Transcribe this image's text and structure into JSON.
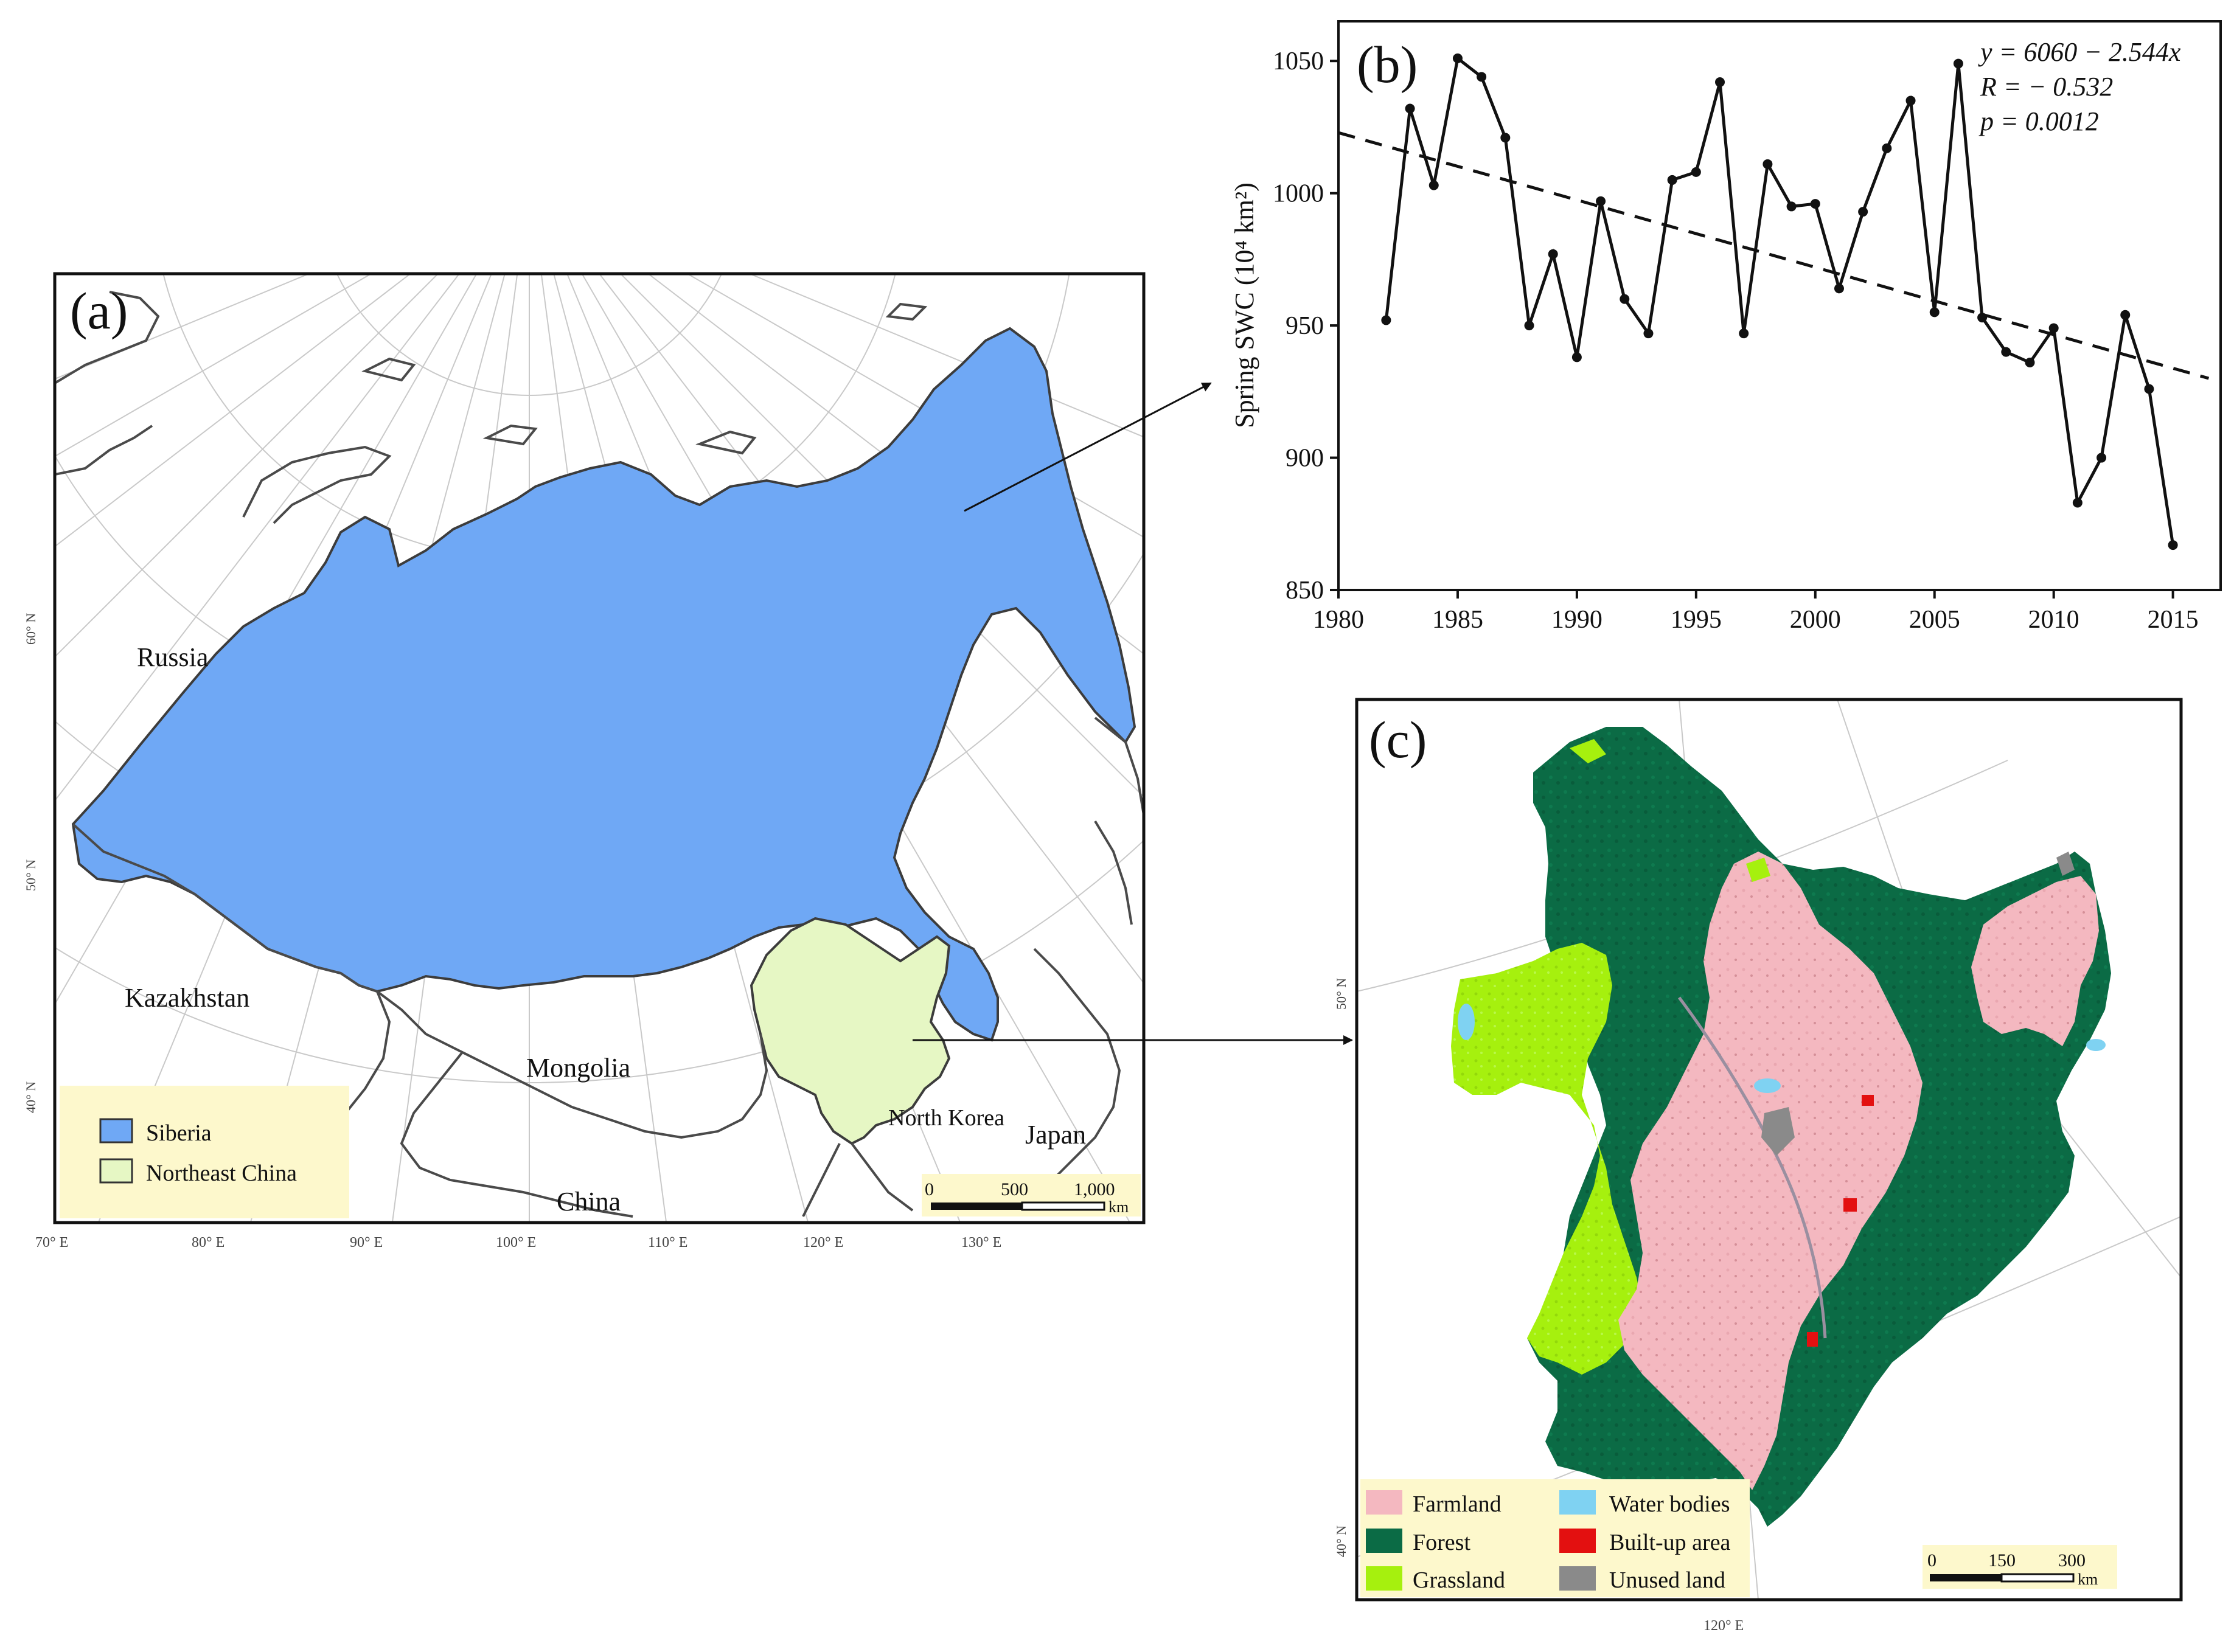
{
  "panel_a": {
    "label": "(a)",
    "countries": {
      "russia": "Russia",
      "kazakhstan": "Kazakhstan",
      "mongolia": "Mongolia",
      "china": "China",
      "north_korea": "North Korea",
      "japan": "Japan"
    },
    "legend": [
      {
        "label": "Siberia",
        "color": "#6fa8f5"
      },
      {
        "label": "Northeast China",
        "color": "#e6f7c4"
      }
    ],
    "lat_labels": [
      "60° N",
      "50° N",
      "40° N"
    ],
    "lon_labels": [
      "70° E",
      "80° E",
      "90° E",
      "100° E",
      "110° E",
      "120° E",
      "130° E"
    ],
    "scalebar": {
      "ticks": [
        "0",
        "500",
        "1,000"
      ],
      "unit": "km"
    }
  },
  "panel_c": {
    "label": "(c)",
    "legend": [
      {
        "label": "Farmland",
        "color": "#f4b8c0"
      },
      {
        "label": "Water bodies",
        "color": "#7fd2f2"
      },
      {
        "label": "Forest",
        "color": "#0b6b45"
      },
      {
        "label": "Built-up area",
        "color": "#e31010"
      },
      {
        "label": "Grassland",
        "color": "#a6f00e"
      },
      {
        "label": "Unused land",
        "color": "#8a8a8a"
      }
    ],
    "lat_labels": [
      "50° N",
      "40° N"
    ],
    "lon_labels": [
      "120° E"
    ],
    "scalebar": {
      "ticks": [
        "0",
        "150",
        "300"
      ],
      "unit": "km"
    }
  },
  "chart_data": {
    "type": "line",
    "panel_label": "(b)",
    "ylabel": "Spring SWC (10⁴ km²)",
    "xlabel": "",
    "xlim": [
      1980,
      2017
    ],
    "ylim": [
      850,
      1065
    ],
    "xticks": [
      1980,
      1985,
      1990,
      1995,
      2000,
      2005,
      2010,
      2015
    ],
    "yticks": [
      850,
      900,
      950,
      1000,
      1050
    ],
    "x": [
      1982,
      1983,
      1984,
      1985,
      1986,
      1987,
      1988,
      1989,
      1990,
      1991,
      1992,
      1993,
      1994,
      1995,
      1996,
      1997,
      1998,
      1999,
      2000,
      2001,
      2002,
      2003,
      2004,
      2005,
      2006,
      2007,
      2008,
      2009,
      2010,
      2011,
      2012,
      2013,
      2014,
      2015
    ],
    "series": [
      {
        "values": [
          952,
          1032,
          1003,
          1051,
          1044,
          1021,
          950,
          977,
          938,
          997,
          960,
          947,
          1005,
          1008,
          1042,
          947,
          1011,
          995,
          996,
          964,
          993,
          1017,
          1035,
          955,
          1049,
          953,
          940,
          936,
          949,
          883,
          900,
          954,
          926,
          867
        ]
      }
    ],
    "trendline": {
      "intercept": 6060,
      "slope": -2.544,
      "style": "dashed"
    },
    "annotations": [
      "y = 6060 − 2.544x",
      "R = − 0.532",
      "p = 0.0012"
    ]
  }
}
